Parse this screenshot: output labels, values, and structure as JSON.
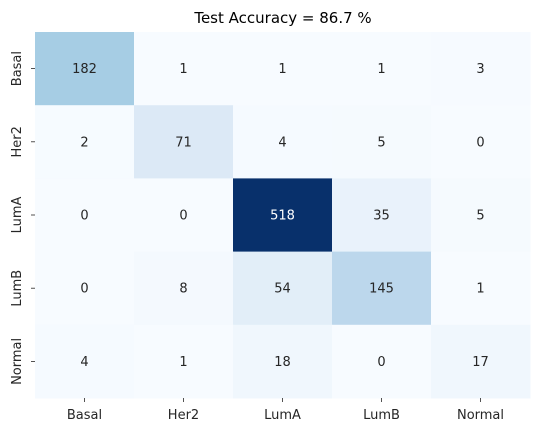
{
  "chart_data": {
    "type": "heatmap",
    "title": "Test Accuracy = 86.7 %",
    "row_labels": [
      "Basal",
      "Her2",
      "LumA",
      "LumB",
      "Normal"
    ],
    "col_labels": [
      "Basal",
      "Her2",
      "LumA",
      "LumB",
      "Normal"
    ],
    "values": [
      [
        182,
        1,
        1,
        1,
        3
      ],
      [
        2,
        71,
        4,
        5,
        0
      ],
      [
        0,
        0,
        518,
        35,
        5
      ],
      [
        0,
        8,
        54,
        145,
        1
      ],
      [
        4,
        1,
        18,
        0,
        17
      ]
    ],
    "colormap": "Blues",
    "color_low": "#f7fbff",
    "color_high": "#08306b",
    "value_range": [
      0,
      518
    ],
    "colorbar": false
  }
}
